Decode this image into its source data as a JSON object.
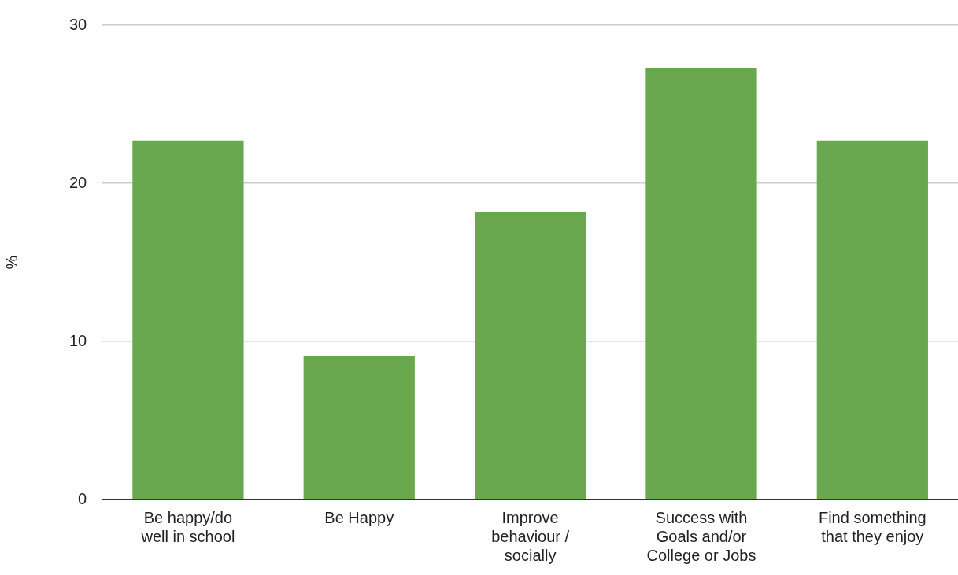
{
  "chart_data": {
    "type": "bar",
    "ylabel": "%",
    "categories": [
      "Be happy/do well in school",
      "Be Happy",
      "Improve behaviour / socially",
      "Success with Goals and/or College or Jobs",
      "Find something that they enjoy"
    ],
    "values": [
      22.7,
      9.1,
      18.2,
      27.3,
      22.7
    ],
    "color": "#6aa84f",
    "ylim": [
      0,
      30
    ],
    "yticks": [
      0,
      10,
      20,
      30
    ],
    "grid": "y",
    "legend": false
  }
}
